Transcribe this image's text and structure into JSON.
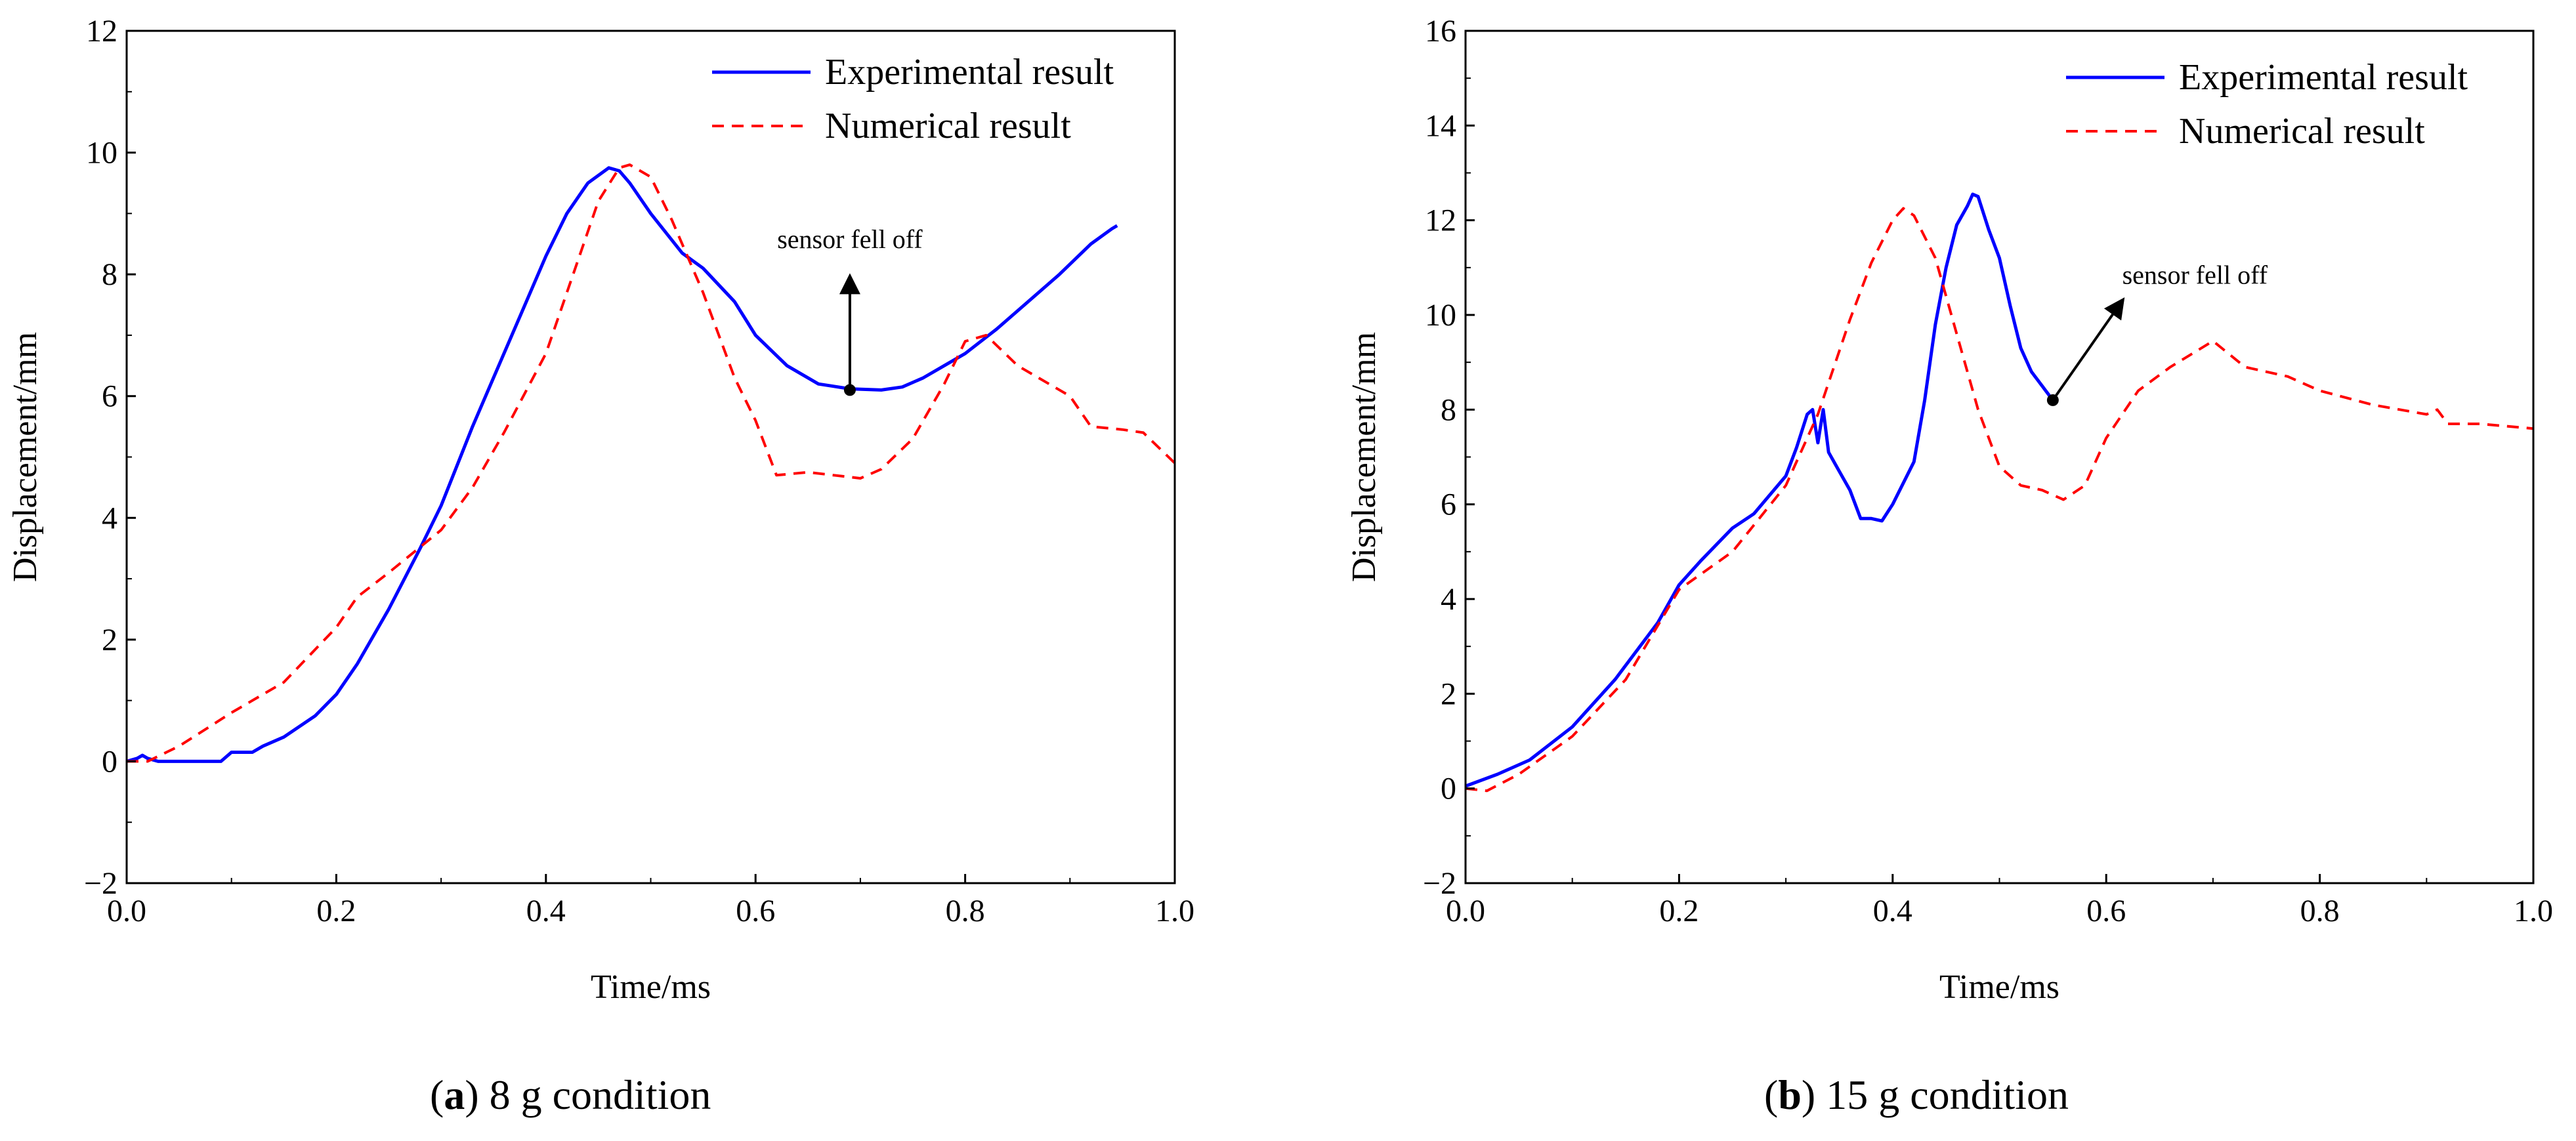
{
  "chart_data": [
    {
      "type": "line",
      "panel": "a",
      "caption": {
        "letter": "a",
        "text": " 8 g condition"
      },
      "xlabel": "Time/ms",
      "ylabel": "Displacement/mm",
      "xlim": [
        0.0,
        1.0
      ],
      "ylim": [
        -2,
        12
      ],
      "xticks": [
        0.0,
        0.2,
        0.4,
        0.6,
        0.8,
        1.0
      ],
      "xtick_labels": [
        "0.0",
        "0.2",
        "0.4",
        "0.6",
        "0.8",
        "1.0"
      ],
      "yticks": [
        -2,
        0,
        2,
        4,
        6,
        8,
        10,
        12
      ],
      "ytick_labels": [
        "−2",
        "0",
        "2",
        "4",
        "6",
        "8",
        "10",
        "12"
      ],
      "legend_position": "top-right",
      "series": [
        {
          "name": "Experimental result",
          "color": "#0000ff",
          "style": "solid",
          "x": [
            0.0,
            0.01,
            0.015,
            0.02,
            0.03,
            0.05,
            0.09,
            0.1,
            0.12,
            0.13,
            0.15,
            0.18,
            0.2,
            0.22,
            0.25,
            0.28,
            0.3,
            0.33,
            0.35,
            0.38,
            0.4,
            0.42,
            0.44,
            0.46,
            0.47,
            0.48,
            0.5,
            0.53,
            0.55,
            0.58,
            0.6,
            0.63,
            0.66,
            0.69,
            0.72,
            0.74,
            0.76,
            0.78,
            0.8,
            0.83,
            0.86,
            0.89,
            0.92,
            0.94,
            0.945
          ],
          "values": [
            0.0,
            0.05,
            0.1,
            0.05,
            0.0,
            0.0,
            0.0,
            0.15,
            0.15,
            0.25,
            0.4,
            0.75,
            1.1,
            1.6,
            2.5,
            3.5,
            4.2,
            5.5,
            6.3,
            7.5,
            8.3,
            9.0,
            9.5,
            9.75,
            9.7,
            9.5,
            9.0,
            8.35,
            8.1,
            7.55,
            7.0,
            6.5,
            6.2,
            6.12,
            6.1,
            6.15,
            6.3,
            6.5,
            6.7,
            7.1,
            7.55,
            8.0,
            8.5,
            8.75,
            8.8
          ]
        },
        {
          "name": "Numerical result",
          "color": "#ff0000",
          "style": "dashed",
          "x": [
            0.0,
            0.02,
            0.05,
            0.1,
            0.15,
            0.2,
            0.22,
            0.25,
            0.3,
            0.33,
            0.36,
            0.4,
            0.43,
            0.45,
            0.47,
            0.48,
            0.5,
            0.52,
            0.55,
            0.58,
            0.6,
            0.62,
            0.65,
            0.7,
            0.72,
            0.75,
            0.78,
            0.8,
            0.82,
            0.85,
            0.9,
            0.92,
            0.95,
            0.97,
            1.0
          ],
          "values": [
            0.0,
            0.0,
            0.25,
            0.8,
            1.3,
            2.2,
            2.7,
            3.1,
            3.8,
            4.5,
            5.4,
            6.7,
            8.2,
            9.2,
            9.75,
            9.8,
            9.6,
            8.9,
            7.7,
            6.3,
            5.6,
            4.7,
            4.75,
            4.65,
            4.8,
            5.3,
            6.2,
            6.9,
            7.0,
            6.5,
            6.0,
            5.5,
            5.45,
            5.4,
            4.9
          ]
        }
      ],
      "annotation": {
        "text": "sensor fell off",
        "point": [
          0.69,
          6.1
        ],
        "arrow_to": [
          0.69,
          7.95
        ]
      }
    },
    {
      "type": "line",
      "panel": "b",
      "caption": {
        "letter": "b",
        "text": " 15 g condition"
      },
      "xlabel": "Time/ms",
      "ylabel": "Displacement/mm",
      "xlim": [
        0.0,
        1.0
      ],
      "ylim": [
        -2,
        16
      ],
      "xticks": [
        0.0,
        0.2,
        0.4,
        0.6,
        0.8,
        1.0
      ],
      "xtick_labels": [
        "0.0",
        "0.2",
        "0.4",
        "0.6",
        "0.8",
        "1.0"
      ],
      "yticks": [
        -2,
        0,
        2,
        4,
        6,
        8,
        10,
        12,
        14,
        16
      ],
      "ytick_labels": [
        "−2",
        "0",
        "2",
        "4",
        "6",
        "8",
        "10",
        "12",
        "14",
        "16"
      ],
      "legend_position": "top-right",
      "series": [
        {
          "name": "Experimental result",
          "color": "#0000ff",
          "style": "solid",
          "x": [
            0.0,
            0.03,
            0.06,
            0.1,
            0.14,
            0.18,
            0.2,
            0.22,
            0.25,
            0.27,
            0.3,
            0.31,
            0.32,
            0.325,
            0.33,
            0.335,
            0.34,
            0.35,
            0.36,
            0.37,
            0.38,
            0.39,
            0.4,
            0.42,
            0.43,
            0.44,
            0.45,
            0.46,
            0.47,
            0.475,
            0.48,
            0.49,
            0.5,
            0.51,
            0.52,
            0.53,
            0.54,
            0.55
          ],
          "values": [
            0.05,
            0.3,
            0.6,
            1.3,
            2.3,
            3.5,
            4.3,
            4.8,
            5.5,
            5.8,
            6.6,
            7.2,
            7.9,
            8.0,
            7.3,
            8.0,
            7.1,
            6.7,
            6.3,
            5.7,
            5.7,
            5.65,
            6.0,
            6.9,
            8.2,
            9.8,
            11.0,
            11.9,
            12.3,
            12.55,
            12.5,
            11.8,
            11.2,
            10.2,
            9.3,
            8.8,
            8.5,
            8.2
          ]
        },
        {
          "name": "Numerical result",
          "color": "#ff0000",
          "style": "dashed",
          "x": [
            0.0,
            0.02,
            0.05,
            0.1,
            0.15,
            0.2,
            0.25,
            0.3,
            0.33,
            0.36,
            0.38,
            0.4,
            0.41,
            0.42,
            0.44,
            0.46,
            0.48,
            0.5,
            0.52,
            0.54,
            0.56,
            0.58,
            0.6,
            0.63,
            0.66,
            0.7,
            0.73,
            0.77,
            0.8,
            0.85,
            0.9,
            0.91,
            0.92,
            0.95,
            1.0
          ],
          "values": [
            0.0,
            -0.05,
            0.3,
            1.1,
            2.3,
            4.2,
            5.0,
            6.4,
            7.9,
            9.9,
            11.1,
            12.0,
            12.25,
            12.1,
            11.2,
            9.6,
            8.0,
            6.8,
            6.4,
            6.3,
            6.1,
            6.4,
            7.4,
            8.4,
            8.9,
            9.45,
            8.9,
            8.7,
            8.4,
            8.1,
            7.9,
            8.0,
            7.7,
            7.7,
            7.6
          ]
        }
      ],
      "annotation": {
        "text": "sensor fell off",
        "point": [
          0.55,
          8.2
        ],
        "arrow_to": [
          0.615,
          10.3
        ]
      }
    }
  ]
}
